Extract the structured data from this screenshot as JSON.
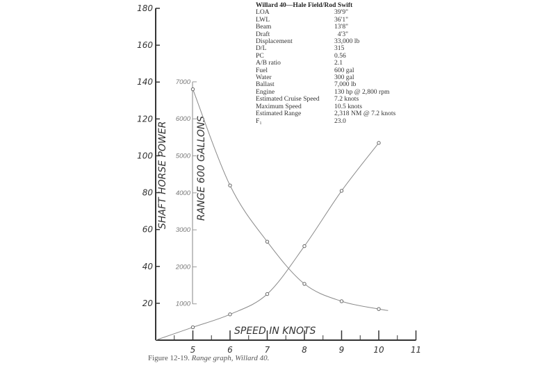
{
  "specs": {
    "title": "Willard 40—Hale Field/Rod Swift",
    "rows": [
      {
        "k": "LOA",
        "v": "39'9\""
      },
      {
        "k": "LWL",
        "v": "36'1\""
      },
      {
        "k": "Beam",
        "v": "13'8\""
      },
      {
        "k": "Draft",
        "v": "  4'3\""
      },
      {
        "k": "Displacement",
        "v": "33,000 lb"
      },
      {
        "k": "D/L",
        "v": "315"
      },
      {
        "k": "PC",
        "v": "0.56"
      },
      {
        "k": "A/B ratio",
        "v": "2.1"
      },
      {
        "k": "Fuel",
        "v": "600 gal"
      },
      {
        "k": "Water",
        "v": "300 gal"
      },
      {
        "k": "Ballast",
        "v": "7,000 lb"
      },
      {
        "k": "Engine",
        "v": "130 hp @ 2,800 rpm"
      },
      {
        "k": "Estimated Cruise Speed",
        "v": "7.2 knots"
      },
      {
        "k": "Maximum Speed",
        "v": "10.5 knots"
      },
      {
        "k": "Estimated Range",
        "v": "2,318 NM @ 7.2 knots"
      },
      {
        "k": "F₁",
        "v": "23.0"
      }
    ]
  },
  "caption": {
    "prefix": "Figure 12-19. ",
    "italic": "Range graph, Willard 40."
  },
  "chart_data": {
    "type": "line",
    "title": "Range graph, Willard 40",
    "xlabel": "SPEED IN KNOTS",
    "ylabel": "SHAFT HORSE POWER",
    "y2label": "RANGE 600 GALLONS",
    "xlim": [
      4,
      11
    ],
    "ylim": [
      0,
      180
    ],
    "y2lim": [
      1000,
      7000
    ],
    "x_ticks": [
      5,
      6,
      7,
      8,
      9,
      10,
      11
    ],
    "y_ticks": [
      20,
      40,
      60,
      80,
      100,
      120,
      140,
      160,
      180
    ],
    "y2_ticks": [
      1000,
      2000,
      3000,
      4000,
      5000,
      6000,
      7000
    ],
    "grid": false,
    "series": [
      {
        "name": "Shaft Horse Power",
        "axis": "y",
        "x": [
          4,
          5,
          6,
          7,
          8,
          9,
          10
        ],
        "values": [
          0,
          7,
          14,
          25,
          51,
          81,
          107
        ]
      },
      {
        "name": "Range (600 gallons)",
        "axis": "y2",
        "x": [
          5,
          6,
          7,
          8,
          9,
          10,
          10.25
        ],
        "values": [
          6800,
          4200,
          2680,
          1540,
          1070,
          860,
          820
        ]
      }
    ]
  },
  "colors": {
    "axis": "#333333",
    "line": "#8a8a8a",
    "range_axis": "#999999"
  }
}
